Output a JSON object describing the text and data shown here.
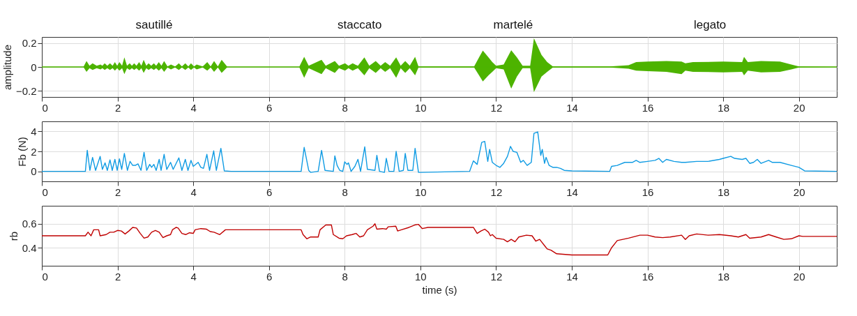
{
  "chart_data": [
    {
      "type": "line",
      "ylabel": "amplitude",
      "xlim": [
        0,
        21
      ],
      "xticks": [
        0,
        2,
        4,
        6,
        8,
        10,
        12,
        14,
        16,
        18,
        20
      ],
      "ylim": [
        -0.25,
        0.25
      ],
      "yticks": [
        -0.2,
        0,
        0.2
      ],
      "grid": true,
      "annotations": [
        "sautillé",
        "staccato",
        "martelé",
        "legato"
      ],
      "x": [
        0,
        1.1,
        1.18,
        1.26,
        1.34,
        1.45,
        1.55,
        1.6,
        1.66,
        1.73,
        1.8,
        1.87,
        1.93,
        1.99,
        2.05,
        2.12,
        2.18,
        2.25,
        2.32,
        2.38,
        2.44,
        2.5,
        2.57,
        2.63,
        2.69,
        2.76,
        2.82,
        2.89,
        2.96,
        3.02,
        3.09,
        3.16,
        3.23,
        3.32,
        3.41,
        3.52,
        3.62,
        3.7,
        3.79,
        3.87,
        3.94,
        4.02,
        4.09,
        4.25,
        4.37,
        4.46,
        4.55,
        4.65,
        4.75,
        4.9,
        6.8,
        6.93,
        7.05,
        7.39,
        7.5,
        7.74,
        7.85,
        8.01,
        8.1,
        8.21,
        8.35,
        8.52,
        8.65,
        8.82,
        8.95,
        9.07,
        9.2,
        9.36,
        9.48,
        9.6,
        9.72,
        9.86,
        9.95,
        11.42,
        11.55,
        11.65,
        11.8,
        11.9,
        12.0,
        12.2,
        12.4,
        12.55,
        12.7,
        12.9,
        13.0,
        13.2,
        13.35,
        13.5,
        15.0,
        15.5,
        15.7,
        16.0,
        16.5,
        16.9,
        17.0,
        17.2,
        18.0,
        18.5,
        18.55,
        18.65,
        19.0,
        19.5,
        19.8,
        20.0,
        21
      ],
      "series": [
        {
          "color": "#4db300",
          "values": [
            0,
            0,
            0,
            0,
            0,
            0,
            0,
            0,
            0,
            0,
            0,
            0,
            0,
            0,
            0,
            0,
            0,
            0,
            0,
            0,
            0,
            0,
            0,
            0,
            0,
            0,
            0,
            0,
            0,
            0,
            0,
            0,
            0,
            0,
            0,
            0,
            0,
            0,
            0,
            0,
            0,
            0,
            0,
            0,
            0,
            0,
            0,
            0,
            0,
            0,
            0,
            0,
            0,
            0,
            0,
            0,
            0,
            0,
            0,
            0,
            0,
            0,
            0,
            0,
            0,
            0,
            0,
            0,
            0,
            0,
            0,
            0,
            0,
            0,
            0,
            0,
            0,
            0,
            0,
            0,
            0,
            0,
            0,
            0,
            0,
            0,
            0,
            0,
            0,
            0,
            0,
            0,
            0,
            0,
            0,
            0,
            0,
            0,
            0,
            0,
            0,
            0,
            0,
            0,
            0
          ],
          "upper": [
            0.002,
            0.002,
            0.05,
            0.01,
            0.03,
            0.01,
            0.02,
            0.01,
            0.03,
            0.01,
            0.03,
            0.01,
            0.04,
            0.01,
            0.04,
            0.01,
            0.08,
            0.01,
            0.03,
            0.01,
            0.03,
            0.01,
            0.04,
            0.01,
            0.06,
            0.01,
            0.03,
            0.01,
            0.03,
            0.01,
            0.04,
            0.01,
            0.05,
            0.005,
            0.02,
            0.005,
            0.03,
            0.005,
            0.03,
            0.005,
            0.03,
            0.005,
            0.02,
            0.005,
            0.04,
            0.005,
            0.05,
            0.005,
            0.06,
            0.002,
            0.002,
            0.085,
            0.01,
            0.06,
            0.01,
            0.05,
            0.01,
            0.03,
            0.01,
            0.03,
            0.01,
            0.08,
            0.01,
            0.05,
            0.01,
            0.04,
            0.01,
            0.08,
            0.01,
            0.05,
            0.01,
            0.085,
            0.005,
            0.005,
            0.08,
            0.136,
            0.08,
            0.04,
            0.01,
            0.02,
            0.14,
            0.08,
            0.01,
            0.01,
            0.24,
            0.1,
            0.04,
            0.005,
            0.005,
            0.015,
            0.04,
            0.045,
            0.05,
            0.045,
            0.03,
            0.04,
            0.045,
            0.04,
            0.084,
            0.04,
            0.05,
            0.045,
            0.02,
            0.005,
            0.002
          ],
          "lower": [
            -0.002,
            -0.002,
            -0.04,
            -0.01,
            -0.025,
            -0.01,
            -0.02,
            -0.01,
            -0.025,
            -0.01,
            -0.025,
            -0.01,
            -0.03,
            -0.01,
            -0.03,
            -0.01,
            -0.06,
            -0.01,
            -0.025,
            -0.01,
            -0.025,
            -0.01,
            -0.03,
            -0.01,
            -0.05,
            -0.01,
            -0.025,
            -0.01,
            -0.025,
            -0.01,
            -0.03,
            -0.01,
            -0.04,
            -0.005,
            -0.02,
            -0.005,
            -0.025,
            -0.005,
            -0.025,
            -0.005,
            -0.025,
            -0.005,
            -0.02,
            -0.005,
            -0.03,
            -0.005,
            -0.04,
            -0.005,
            -0.05,
            -0.002,
            -0.002,
            -0.09,
            -0.01,
            -0.06,
            -0.01,
            -0.05,
            -0.01,
            -0.03,
            -0.01,
            -0.03,
            -0.01,
            -0.07,
            -0.01,
            -0.05,
            -0.01,
            -0.04,
            -0.01,
            -0.09,
            -0.01,
            -0.05,
            -0.01,
            -0.07,
            -0.005,
            -0.005,
            -0.07,
            -0.12,
            -0.07,
            -0.04,
            -0.01,
            -0.02,
            -0.18,
            -0.08,
            -0.01,
            -0.01,
            -0.21,
            -0.08,
            -0.04,
            -0.005,
            -0.005,
            -0.015,
            -0.03,
            -0.035,
            -0.04,
            -0.06,
            -0.03,
            -0.04,
            -0.045,
            -0.04,
            -0.07,
            -0.03,
            -0.045,
            -0.04,
            -0.02,
            -0.005,
            -0.002
          ]
        }
      ]
    },
    {
      "type": "line",
      "ylabel": "Fb (N)",
      "xlim": [
        0,
        21
      ],
      "xticks": [
        0,
        2,
        4,
        6,
        8,
        10,
        12,
        14,
        16,
        18,
        20
      ],
      "ylim": [
        -1,
        5
      ],
      "yticks": [
        0,
        2,
        4
      ],
      "grid": true,
      "x": [
        0,
        1.15,
        1.2,
        1.27,
        1.34,
        1.42,
        1.54,
        1.6,
        1.67,
        1.73,
        1.8,
        1.86,
        1.93,
        1.99,
        2.05,
        2.11,
        2.18,
        2.26,
        2.33,
        2.4,
        2.47,
        2.54,
        2.62,
        2.7,
        2.77,
        2.85,
        2.9,
        2.96,
        3.02,
        3.1,
        3.15,
        3.23,
        3.3,
        3.4,
        3.47,
        3.62,
        3.7,
        3.79,
        3.86,
        3.94,
        4.0,
        4.13,
        4.2,
        4.27,
        4.36,
        4.43,
        4.54,
        4.61,
        4.73,
        4.82,
        5,
        6.85,
        6.93,
        7.05,
        7.1,
        7.3,
        7.39,
        7.48,
        7.7,
        7.74,
        7.8,
        7.87,
        7.95,
        8.0,
        8.06,
        8.1,
        8.17,
        8.27,
        8.35,
        8.42,
        8.53,
        8.6,
        8.8,
        8.85,
        8.92,
        9.05,
        9.1,
        9.17,
        9.3,
        9.36,
        9.44,
        9.55,
        9.6,
        9.67,
        9.8,
        9.86,
        9.95,
        10,
        11.3,
        11.4,
        11.5,
        11.62,
        11.7,
        11.78,
        11.83,
        11.9,
        12.0,
        12.1,
        12.2,
        12.3,
        12.38,
        12.45,
        12.55,
        12.65,
        12.72,
        12.82,
        12.93,
        13.0,
        13.1,
        13.18,
        13.22,
        13.28,
        13.32,
        13.4,
        13.5,
        13.6,
        13.7,
        13.8,
        14,
        15.0,
        15.05,
        15.2,
        15.4,
        15.6,
        15.7,
        15.8,
        16.0,
        16.2,
        16.3,
        16.4,
        16.5,
        16.7,
        16.9,
        17.0,
        17.3,
        17.6,
        17.9,
        18.0,
        18.2,
        18.3,
        18.5,
        18.6,
        18.7,
        18.8,
        18.9,
        19.0,
        19.2,
        19.3,
        19.5,
        19.8,
        20.0,
        20.15,
        21
      ],
      "series": [
        {
          "color": "#0f9be3",
          "values": [
            0,
            0,
            2.1,
            0.1,
            1.4,
            0.1,
            1.5,
            0.2,
            0.85,
            0.1,
            1.15,
            0.1,
            1.2,
            0.1,
            1.25,
            0.2,
            1.8,
            0.1,
            1.0,
            0.6,
            0.6,
            0.75,
            0.1,
            1.9,
            0.1,
            0.7,
            0.4,
            0.7,
            0.1,
            1.2,
            0.1,
            1.7,
            0.2,
            0.9,
            0.2,
            1.35,
            0.1,
            1.2,
            0.1,
            1.1,
            0.5,
            0.9,
            0.4,
            0.3,
            1.7,
            0.1,
            2.05,
            0.1,
            2.3,
            0.05,
            0,
            0,
            2.4,
            0.1,
            -0.1,
            0,
            2.1,
            0.1,
            0,
            1.55,
            0.6,
            0.1,
            0,
            0.95,
            0.7,
            0.85,
            0,
            0.5,
            1.2,
            0,
            2.45,
            0.2,
            0.1,
            1.6,
            0,
            -0.1,
            1.3,
            0,
            0,
            2.0,
            0,
            0.1,
            1.8,
            0.1,
            0.1,
            2.3,
            -0.1,
            -0.1,
            0,
            1.05,
            0.7,
            2.9,
            3.0,
            1.0,
            2.2,
            0.9,
            0.6,
            0.4,
            0.8,
            1.5,
            2.5,
            2.0,
            1.9,
            0.9,
            1.1,
            0.6,
            0.9,
            3.8,
            3.95,
            1.6,
            2.2,
            0.8,
            1.4,
            0.6,
            0.4,
            0.4,
            0.3,
            0.1,
            0.05,
            0,
            0.5,
            0.6,
            0.9,
            0.9,
            1.1,
            0.9,
            1.0,
            1.1,
            1.3,
            0.9,
            1.2,
            1.0,
            0.9,
            0.9,
            1.0,
            1.0,
            1.2,
            1.3,
            1.5,
            1.3,
            1.2,
            1.3,
            0.8,
            0.9,
            1.2,
            0.8,
            1.1,
            0.9,
            0.9,
            0.6,
            0.4,
            0.05,
            0
          ]
        }
      ]
    },
    {
      "type": "line",
      "ylabel": "rb",
      "xlabel": "time (s)",
      "xlim": [
        0,
        21
      ],
      "xticks": [
        0,
        2,
        4,
        6,
        8,
        10,
        12,
        14,
        16,
        18,
        20
      ],
      "ylim": [
        0.25,
        0.75
      ],
      "yticks": [
        0.4,
        0.6
      ],
      "grid": true,
      "x": [
        0,
        1.15,
        1.22,
        1.3,
        1.37,
        1.5,
        1.54,
        1.7,
        1.8,
        1.9,
        2.0,
        2.1,
        2.2,
        2.3,
        2.4,
        2.5,
        2.6,
        2.7,
        2.8,
        2.9,
        3.0,
        3.1,
        3.2,
        3.3,
        3.4,
        3.45,
        3.55,
        3.6,
        3.7,
        3.8,
        3.9,
        4.0,
        4.05,
        4.2,
        4.35,
        4.45,
        4.55,
        4.7,
        4.85,
        6.85,
        6.9,
        7.0,
        7.1,
        7.3,
        7.35,
        7.5,
        7.65,
        7.7,
        7.85,
        7.95,
        8.05,
        8.2,
        8.3,
        8.4,
        8.5,
        8.6,
        8.75,
        8.8,
        8.85,
        9.0,
        9.1,
        9.15,
        9.35,
        9.4,
        9.5,
        9.7,
        9.85,
        9.95,
        10.05,
        10.2,
        11.4,
        11.5,
        11.6,
        11.7,
        11.8,
        11.85,
        11.9,
        12.0,
        12.2,
        12.3,
        12.4,
        12.5,
        12.6,
        12.8,
        12.95,
        13.05,
        13.15,
        13.3,
        13.35,
        13.45,
        13.6,
        14.0,
        14.95,
        15.05,
        15.2,
        15.5,
        15.8,
        16.0,
        16.2,
        16.4,
        16.6,
        16.9,
        17.0,
        17.1,
        17.3,
        17.6,
        17.9,
        18.2,
        18.4,
        18.6,
        18.7,
        19.0,
        19.2,
        19.4,
        19.6,
        19.8,
        20.0,
        20.1,
        21
      ],
      "series": [
        {
          "color": "#c00000",
          "values": [
            0.5,
            0.5,
            0.53,
            0.5,
            0.55,
            0.55,
            0.5,
            0.51,
            0.53,
            0.53,
            0.545,
            0.54,
            0.515,
            0.54,
            0.57,
            0.565,
            0.52,
            0.48,
            0.49,
            0.53,
            0.545,
            0.53,
            0.485,
            0.5,
            0.51,
            0.55,
            0.57,
            0.565,
            0.52,
            0.51,
            0.525,
            0.52,
            0.55,
            0.56,
            0.555,
            0.535,
            0.53,
            0.51,
            0.55,
            0.55,
            0.51,
            0.475,
            0.49,
            0.49,
            0.55,
            0.59,
            0.59,
            0.51,
            0.48,
            0.475,
            0.5,
            0.51,
            0.52,
            0.49,
            0.5,
            0.55,
            0.58,
            0.6,
            0.555,
            0.56,
            0.555,
            0.575,
            0.58,
            0.54,
            0.55,
            0.57,
            0.59,
            0.595,
            0.56,
            0.57,
            0.57,
            0.52,
            0.54,
            0.555,
            0.53,
            0.5,
            0.51,
            0.48,
            0.47,
            0.45,
            0.47,
            0.45,
            0.49,
            0.505,
            0.5,
            0.455,
            0.47,
            0.41,
            0.39,
            0.38,
            0.35,
            0.34,
            0.34,
            0.4,
            0.46,
            0.48,
            0.505,
            0.505,
            0.49,
            0.485,
            0.49,
            0.505,
            0.47,
            0.5,
            0.515,
            0.505,
            0.51,
            0.5,
            0.49,
            0.51,
            0.48,
            0.49,
            0.51,
            0.49,
            0.47,
            0.475,
            0.5,
            0.495,
            0.495
          ]
        }
      ]
    }
  ]
}
